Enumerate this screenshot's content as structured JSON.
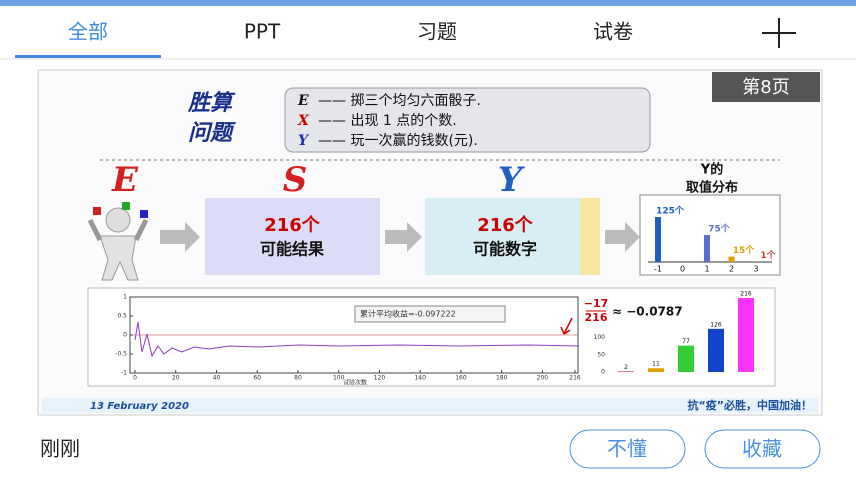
{
  "tabs": [
    "全部",
    "PPT",
    "习题",
    "试卷"
  ],
  "slide": {
    "page": "第8页",
    "title_lines": [
      "胜算",
      "问题"
    ],
    "definitions": [
      {
        "symbol": "E",
        "text": "—— 掷三个均匀六面骰子."
      },
      {
        "symbol": "X",
        "text": "—— 出现 1 点的个数."
      },
      {
        "symbol": "Y",
        "text": "—— 玩一次赢的钱数(元)."
      }
    ],
    "stages": [
      {
        "letter": "E"
      },
      {
        "letter": "S",
        "count": "216个",
        "caption": "可能结果"
      },
      {
        "letter": "Y",
        "count": "216个",
        "caption": "可能数字"
      }
    ],
    "distribution": {
      "title_lines": [
        "Y的",
        "取值分布"
      ],
      "categories": [
        "-1",
        "0",
        "1",
        "2",
        "3"
      ],
      "bars": [
        {
          "category": -1,
          "value": 125,
          "label": "125个"
        },
        {
          "category": 1,
          "value": 75,
          "label": "75个"
        },
        {
          "category": 2,
          "value": 15,
          "label": "15个"
        },
        {
          "category": 3,
          "value": 1,
          "label": "1个"
        }
      ]
    },
    "simulation": {
      "legend": "累计平均收益=-0.097222",
      "yticks": [
        1,
        0.5,
        0,
        -0.5,
        -1
      ],
      "xticks": [
        0,
        20,
        40,
        60,
        80,
        100,
        120,
        140,
        160,
        180,
        200,
        216
      ],
      "xlabel": "试验次数",
      "fraction": {
        "numerator": "−17",
        "denominator": "216"
      },
      "approx": "≈ −0.0787",
      "bar_yticks": [
        0,
        50,
        100
      ],
      "bars": [
        {
          "value": 2,
          "color": "#d04060"
        },
        {
          "value": 11,
          "color": "#e0a000"
        },
        {
          "value": 77,
          "color": "#33cc33"
        },
        {
          "value": 126,
          "color": "#1144cc"
        },
        {
          "value": 216,
          "color": "#ff33ff"
        }
      ]
    },
    "footer": {
      "date": "13 February 2020",
      "slogan": "抗“疫”必胜，中国加油！"
    }
  },
  "bottom": {
    "time": "刚刚",
    "buttons": [
      "不懂",
      "收藏"
    ]
  }
}
